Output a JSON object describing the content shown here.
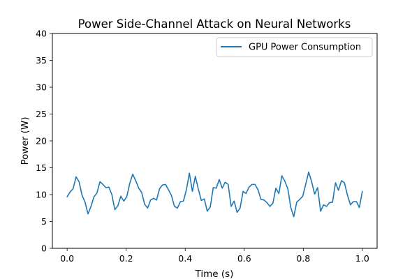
{
  "chart_data": {
    "type": "line",
    "title": "Power Side-Channel Attack on Neural Networks",
    "xlabel": "Time (s)",
    "ylabel": "Power (W)",
    "xlim": [
      -0.05,
      1.05
    ],
    "ylim": [
      0,
      40
    ],
    "xticks": [
      0.0,
      0.2,
      0.4,
      0.6,
      0.8,
      1.0
    ],
    "xtick_labels": [
      "0.0",
      "0.2",
      "0.4",
      "0.6",
      "0.8",
      "1.0"
    ],
    "yticks": [
      0,
      5,
      10,
      15,
      20,
      25,
      30,
      35,
      40
    ],
    "ytick_labels": [
      "0",
      "5",
      "10",
      "15",
      "20",
      "25",
      "30",
      "35",
      "40"
    ],
    "grid": false,
    "legend_position": "top-right",
    "series": [
      {
        "name": "GPU Power Consumption",
        "color": "#1f77b4",
        "x": [
          0.0,
          0.0101,
          0.0202,
          0.0303,
          0.0404,
          0.0505,
          0.0606,
          0.0707,
          0.0808,
          0.0909,
          0.101,
          0.1111,
          0.1212,
          0.1313,
          0.1414,
          0.1515,
          0.1616,
          0.1717,
          0.1818,
          0.1919,
          0.202,
          0.2121,
          0.2222,
          0.2323,
          0.2424,
          0.2525,
          0.2626,
          0.2727,
          0.2828,
          0.2929,
          0.303,
          0.3131,
          0.3232,
          0.3333,
          0.3434,
          0.3535,
          0.3636,
          0.3737,
          0.3838,
          0.3939,
          0.404,
          0.4141,
          0.4242,
          0.4343,
          0.4444,
          0.4545,
          0.4646,
          0.4747,
          0.4848,
          0.4949,
          0.5051,
          0.5152,
          0.5253,
          0.5354,
          0.5455,
          0.5556,
          0.5657,
          0.5758,
          0.5859,
          0.596,
          0.6061,
          0.6162,
          0.6263,
          0.6364,
          0.6465,
          0.6566,
          0.6667,
          0.6768,
          0.6869,
          0.697,
          0.7071,
          0.7172,
          0.7273,
          0.7374,
          0.7475,
          0.7576,
          0.7677,
          0.7778,
          0.7879,
          0.798,
          0.8081,
          0.8182,
          0.8283,
          0.8384,
          0.8485,
          0.8586,
          0.8687,
          0.8788,
          0.8889,
          0.899,
          0.9091,
          0.9192,
          0.9293,
          0.9394,
          0.9495,
          0.9596,
          0.9697,
          0.9798,
          0.9899,
          1.0
        ],
        "y": [
          9.6,
          10.5,
          11.1,
          13.3,
          12.4,
          9.9,
          8.6,
          6.4,
          7.8,
          9.6,
          10.3,
          12.4,
          11.9,
          11.3,
          11.4,
          10.0,
          7.2,
          7.9,
          9.7,
          8.8,
          9.6,
          12.1,
          13.8,
          12.6,
          11.2,
          10.4,
          8.2,
          7.5,
          9.0,
          9.3,
          9.0,
          11.1,
          11.8,
          11.9,
          10.9,
          9.8,
          7.8,
          7.5,
          8.7,
          8.8,
          10.9,
          14.0,
          10.6,
          13.4,
          11.0,
          8.9,
          9.2,
          6.9,
          7.7,
          11.3,
          11.2,
          12.8,
          11.2,
          12.3,
          11.9,
          7.8,
          8.8,
          6.7,
          7.5,
          10.6,
          10.2,
          11.4,
          11.9,
          11.9,
          10.9,
          9.1,
          9.0,
          8.5,
          7.8,
          8.4,
          11.2,
          10.2,
          13.5,
          12.5,
          11.1,
          7.6,
          5.9,
          8.6,
          9.1,
          9.7,
          11.9,
          14.2,
          12.4,
          10.1,
          11.3,
          6.9,
          8.1,
          7.8,
          8.5,
          8.6,
          12.2,
          10.8,
          12.6,
          12.2,
          9.9,
          8.1,
          8.7,
          8.7,
          7.6,
          10.6
        ]
      }
    ]
  }
}
